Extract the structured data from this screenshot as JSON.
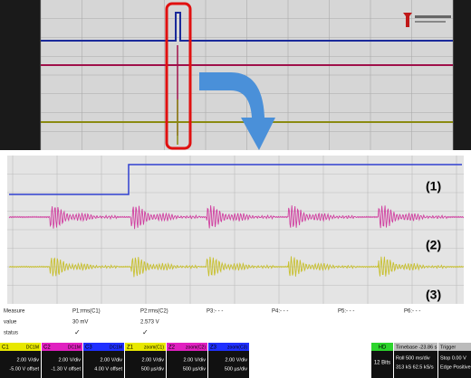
{
  "zoom_labels": [
    "(1)",
    "(2)",
    "(3)"
  ],
  "measure": {
    "header": [
      "Measure",
      "P1:rms(C1)",
      "P2:rms(C2)",
      "P3:- - -",
      "P4:- - -",
      "P5:- - -",
      "P6:- - -"
    ],
    "value_label": "value",
    "values": [
      "30 mV",
      "2.573 V"
    ],
    "status_label": "status",
    "status": [
      "✓",
      "✓"
    ]
  },
  "channels": [
    {
      "name": "C1",
      "tag": "DC1M",
      "lines": [
        "2.00 V/div",
        "-5.00 V offset"
      ]
    },
    {
      "name": "C2",
      "tag": "DC1M",
      "lines": [
        "2.00 V/div",
        "-1.30 V offset"
      ]
    },
    {
      "name": "C3",
      "tag": "DC1M",
      "lines": [
        "2.00 V/div",
        "4.00 V offset"
      ]
    },
    {
      "name": "Z1",
      "tag": "zoom(C1)",
      "lines": [
        "2.00 V/div",
        "500 µs/div"
      ]
    },
    {
      "name": "Z2",
      "tag": "zoom(C2)",
      "lines": [
        "2.00 V/div",
        "500 µs/div"
      ]
    },
    {
      "name": "Z3",
      "tag": "zoom(C3)",
      "lines": [
        "2.00 V/div",
        "500 µs/div"
      ]
    }
  ],
  "acquisition": {
    "mode": "HD",
    "bits": "12 Bits"
  },
  "timebase": {
    "title": "Timebase -23.86 s",
    "lines": [
      "Roll  500 ms/div",
      "313 kS  62.5 kS/s"
    ]
  },
  "trigger": {
    "title": "Trigger",
    "lines": [
      "Stop  0.00 V",
      "Edge  Positive"
    ]
  }
}
